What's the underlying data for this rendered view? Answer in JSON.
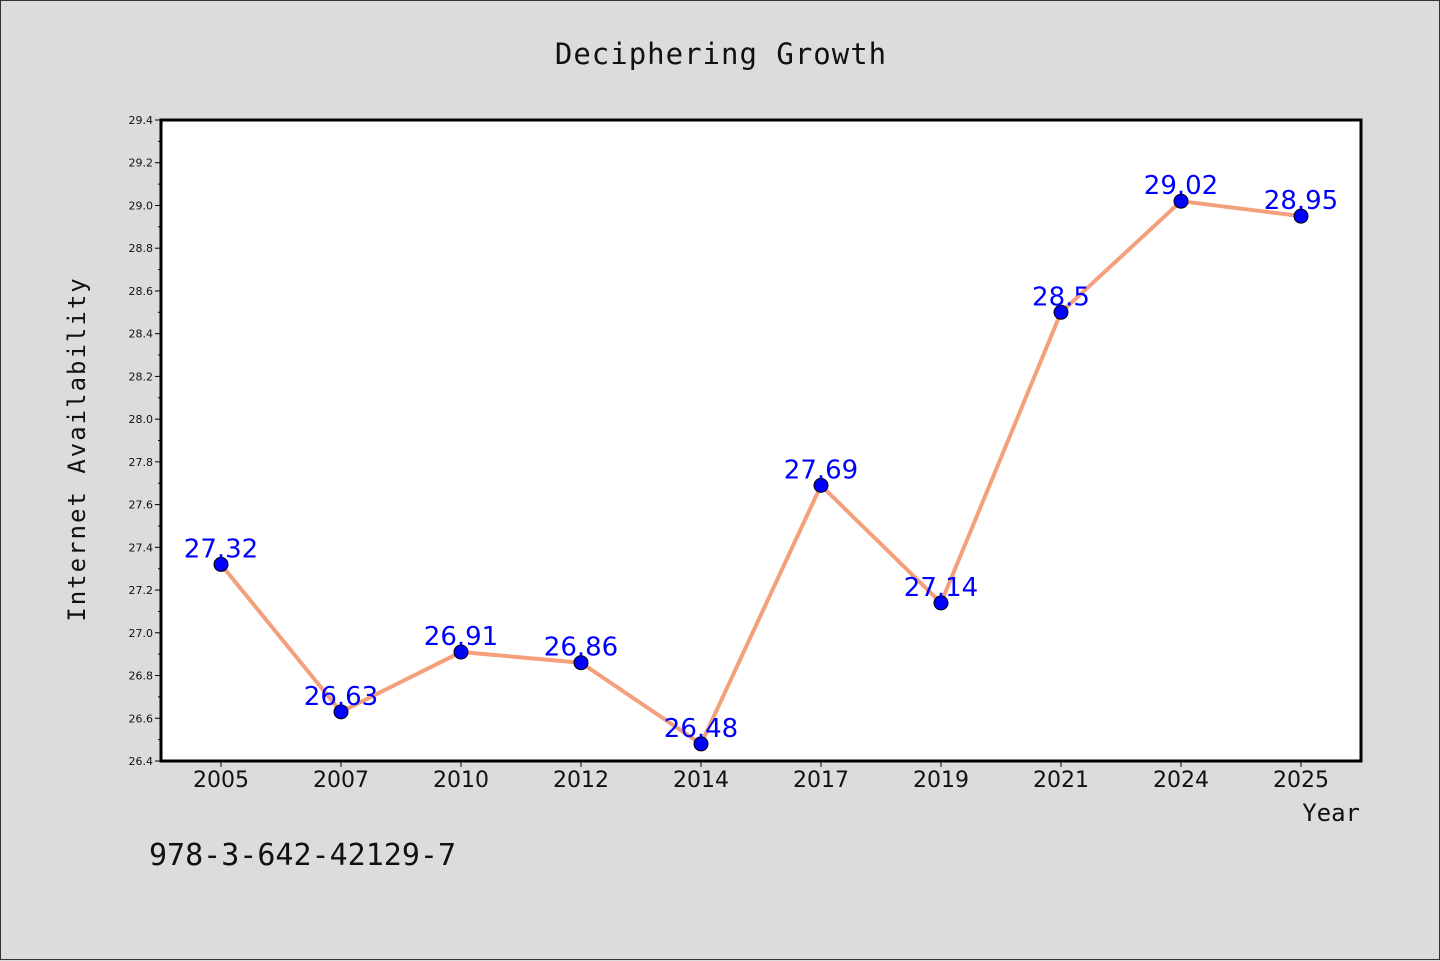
{
  "chart_data": {
    "type": "line",
    "title": "Deciphering Growth",
    "xlabel": "Year",
    "ylabel": "Internet Availability",
    "categories": [
      "2005",
      "2007",
      "2010",
      "2012",
      "2014",
      "2017",
      "2019",
      "2021",
      "2024",
      "2025"
    ],
    "values": [
      27.32,
      26.63,
      26.91,
      26.86,
      26.48,
      27.69,
      27.14,
      28.5,
      29.02,
      28.95
    ],
    "data_labels": [
      "27.32",
      "26.63",
      "26.91",
      "26.86",
      "26.48",
      "27.69",
      "27.14",
      "28.5",
      "29.02",
      "28.95"
    ],
    "ylim": [
      26.4,
      29.4
    ],
    "yticks": [
      "26.4",
      "26.6",
      "26.8",
      "27.0",
      "27.2",
      "27.4",
      "27.6",
      "27.8",
      "28.0",
      "28.2",
      "28.4",
      "28.6",
      "28.8",
      "29.0",
      "29.2",
      "29.4"
    ],
    "grid": false,
    "line_color": "#f4a07c",
    "marker_color": "#0000ff",
    "label_color": "#0000ff",
    "plot_background": "#ffffff",
    "figure_background": "#dcdcdc"
  },
  "footer": {
    "note": "978-3-642-42129-7"
  }
}
